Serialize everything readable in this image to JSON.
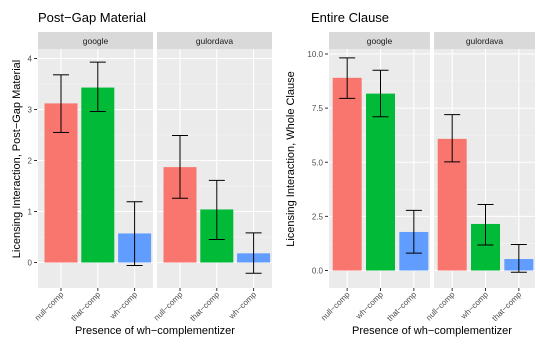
{
  "chart_data": [
    {
      "type": "bar",
      "title": "Post−Gap Material",
      "xlabel": "Presence of wh−complementizer",
      "ylabel": "Licensing Interaction, Post−Gap Material",
      "ylim": [
        -0.4,
        4.3
      ],
      "yticks": [
        0,
        1,
        2,
        3,
        4
      ],
      "grid": true,
      "legend": "none",
      "facets": [
        {
          "name": "google",
          "bars": [
            {
              "category": "null−comp",
              "value": 3.12,
              "ci_low": 2.55,
              "ci_high": 3.68,
              "color": "#F8766D"
            },
            {
              "category": "that−comp",
              "value": 3.43,
              "ci_low": 2.96,
              "ci_high": 3.93,
              "color": "#00BA38"
            },
            {
              "category": "wh−comp",
              "value": 0.57,
              "ci_low": -0.06,
              "ci_high": 1.19,
              "color": "#619CFF"
            }
          ]
        },
        {
          "name": "gulordava",
          "bars": [
            {
              "category": "null−comp",
              "value": 1.87,
              "ci_low": 1.26,
              "ci_high": 2.49,
              "color": "#F8766D"
            },
            {
              "category": "that−comp",
              "value": 1.04,
              "ci_low": 0.45,
              "ci_high": 1.61,
              "color": "#00BA38"
            },
            {
              "category": "wh−comp",
              "value": 0.18,
              "ci_low": -0.21,
              "ci_high": 0.58,
              "color": "#619CFF"
            }
          ]
        }
      ]
    },
    {
      "type": "bar",
      "title": "Entire Clause",
      "xlabel": "Presence of wh−complementizer",
      "ylabel": "Licensing Interaction, Whole Clause",
      "ylim": [
        -0.5,
        10.5
      ],
      "yticks": [
        0.0,
        2.5,
        5.0,
        7.5,
        10.0
      ],
      "ytick_labels": [
        "0.0",
        "2.5",
        "5.0",
        "7.5",
        "10.0"
      ],
      "grid": true,
      "legend": "none",
      "facets": [
        {
          "name": "google",
          "bars": [
            {
              "category": "null−comp",
              "value": 8.9,
              "ci_low": 7.95,
              "ci_high": 9.82,
              "color": "#F8766D"
            },
            {
              "category": "wh−comp",
              "value": 8.17,
              "ci_low": 7.1,
              "ci_high": 9.25,
              "color": "#00BA38"
            },
            {
              "category": "that−comp",
              "value": 1.78,
              "ci_low": 0.8,
              "ci_high": 2.78,
              "color": "#619CFF"
            }
          ]
        },
        {
          "name": "gulordava",
          "bars": [
            {
              "category": "null−comp",
              "value": 6.08,
              "ci_low": 5.02,
              "ci_high": 7.2,
              "color": "#F8766D"
            },
            {
              "category": "wh−comp",
              "value": 2.15,
              "ci_low": 1.18,
              "ci_high": 3.05,
              "color": "#00BA38"
            },
            {
              "category": "that−comp",
              "value": 0.53,
              "ci_low": -0.08,
              "ci_high": 1.2,
              "color": "#619CFF"
            }
          ]
        }
      ]
    }
  ]
}
